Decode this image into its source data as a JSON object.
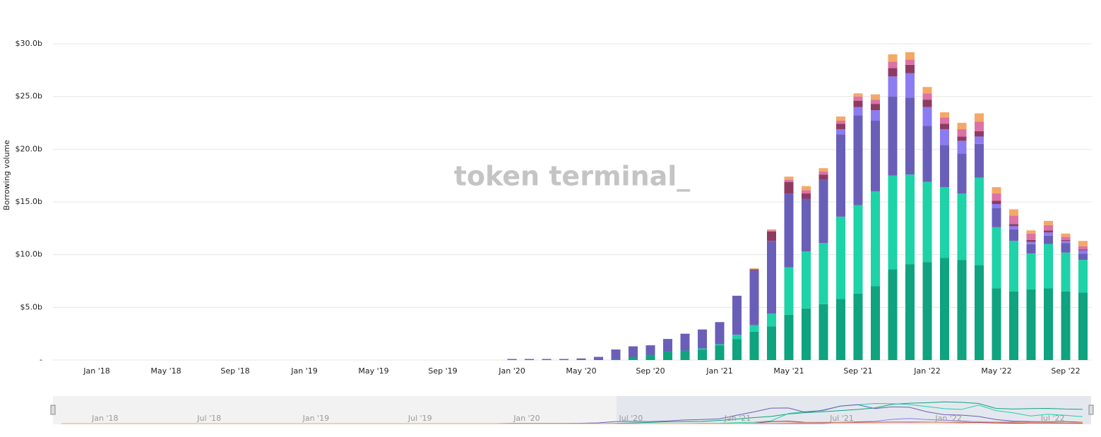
{
  "chart_data": {
    "type": "stacked_bar",
    "y_axis_label": "Borrowing volume",
    "watermark": "token terminal_",
    "categories": [
      null,
      null,
      "Jan '18",
      null,
      null,
      null,
      "May '18",
      null,
      null,
      null,
      "Sep '18",
      null,
      null,
      null,
      "Jan '19",
      null,
      null,
      null,
      "May '19",
      null,
      null,
      null,
      "Sep '19",
      null,
      null,
      null,
      "Jan '20",
      null,
      null,
      null,
      "May '20",
      null,
      null,
      null,
      "Sep '20",
      null,
      null,
      null,
      "Jan '21",
      null,
      null,
      null,
      "May '21",
      null,
      null,
      null,
      "Sep '21",
      null,
      null,
      null,
      "Jan '22",
      null,
      null,
      null,
      "May '22",
      null,
      null,
      null,
      "Sep '22",
      null
    ],
    "series": [
      {
        "color": "#0fa37f",
        "values": [
          0,
          0,
          0,
          0,
          0,
          0,
          0,
          0,
          0,
          0,
          0,
          0,
          0,
          0,
          0,
          0,
          0,
          0,
          0,
          0,
          0,
          0,
          0,
          0,
          0,
          0,
          0,
          0,
          0,
          0,
          0,
          0,
          0.1,
          0.3,
          0.5,
          0.8,
          0.9,
          1.0,
          1.4,
          2.0,
          2.7,
          3.2,
          4.3,
          4.9,
          5.3,
          5.8,
          6.3,
          7.0,
          8.6,
          9.1,
          9.3,
          9.7,
          9.5,
          9.0,
          6.8,
          6.5,
          6.7,
          6.8,
          6.5,
          6.4
        ]
      },
      {
        "color": "#1dd3a7",
        "values": [
          0,
          0,
          0,
          0,
          0,
          0,
          0,
          0,
          0,
          0,
          0,
          0,
          0,
          0,
          0,
          0,
          0,
          0,
          0,
          0,
          0,
          0,
          0,
          0,
          0,
          0,
          0,
          0,
          0,
          0,
          0,
          0,
          0,
          0,
          0,
          0,
          0,
          0.1,
          0.1,
          0.4,
          0.6,
          1.2,
          4.5,
          5.4,
          5.8,
          7.8,
          8.4,
          9.0,
          8.9,
          8.5,
          7.6,
          6.7,
          6.3,
          8.3,
          5.8,
          4.8,
          3.4,
          4.2,
          3.7,
          3.1
        ]
      },
      {
        "color": "#6a5fb8",
        "values": [
          0,
          0,
          0,
          0,
          0,
          0,
          0,
          0,
          0,
          0,
          0,
          0,
          0,
          0,
          0,
          0,
          0,
          0,
          0,
          0,
          0,
          0,
          0,
          0,
          0,
          0,
          0.1,
          0.1,
          0.1,
          0.1,
          0.15,
          0.3,
          0.9,
          1.0,
          0.9,
          1.2,
          1.6,
          1.8,
          2.1,
          3.7,
          5.2,
          6.9,
          7.0,
          5.0,
          6.0,
          7.8,
          8.5,
          6.7,
          7.5,
          7.3,
          5.3,
          4.0,
          3.8,
          3.2,
          1.8,
          1.1,
          0.9,
          0.8,
          0.9,
          0.6
        ]
      },
      {
        "color": "#8b7cf2",
        "values": [
          0,
          0,
          0,
          0,
          0,
          0,
          0,
          0,
          0,
          0,
          0,
          0,
          0,
          0,
          0,
          0,
          0,
          0,
          0,
          0,
          0,
          0,
          0,
          0,
          0,
          0,
          0,
          0,
          0,
          0,
          0,
          0,
          0,
          0,
          0,
          0,
          0,
          0,
          0,
          0,
          0,
          0,
          0,
          0,
          0,
          0.5,
          0.8,
          1.0,
          1.9,
          2.3,
          1.8,
          1.5,
          1.2,
          0.7,
          0.4,
          0.3,
          0.2,
          0.3,
          0.2,
          0.3
        ]
      },
      {
        "color": "#8e3b63",
        "values": [
          0,
          0,
          0,
          0,
          0,
          0,
          0,
          0,
          0,
          0,
          0,
          0,
          0,
          0,
          0,
          0,
          0,
          0,
          0,
          0,
          0,
          0,
          0,
          0,
          0,
          0,
          0,
          0,
          0,
          0,
          0,
          0,
          0,
          0,
          0,
          0,
          0,
          0,
          0,
          0,
          0.1,
          0.9,
          1.1,
          0.5,
          0.5,
          0.5,
          0.6,
          0.6,
          0.8,
          0.8,
          0.7,
          0.5,
          0.4,
          0.5,
          0.3,
          0.2,
          0.2,
          0.2,
          0.1,
          0.1
        ]
      },
      {
        "color": "#dc72a6",
        "values": [
          0,
          0,
          0,
          0,
          0,
          0,
          0,
          0,
          0,
          0,
          0,
          0,
          0,
          0,
          0,
          0,
          0,
          0,
          0,
          0,
          0,
          0,
          0,
          0,
          0,
          0,
          0,
          0,
          0,
          0,
          0,
          0,
          0,
          0,
          0,
          0,
          0,
          0,
          0,
          0,
          0,
          0.1,
          0.2,
          0.3,
          0.3,
          0.3,
          0.4,
          0.4,
          0.6,
          0.5,
          0.6,
          0.6,
          0.7,
          0.9,
          0.7,
          0.8,
          0.6,
          0.5,
          0.3,
          0.3
        ]
      },
      {
        "color": "#f4a868",
        "values": [
          0,
          0,
          0,
          0,
          0,
          0,
          0,
          0,
          0,
          0,
          0,
          0,
          0,
          0,
          0,
          0,
          0,
          0,
          0,
          0,
          0,
          0,
          0,
          0,
          0,
          0,
          0,
          0,
          0,
          0,
          0,
          0,
          0,
          0,
          0,
          0,
          0,
          0,
          0,
          0,
          0.1,
          0.1,
          0.3,
          0.4,
          0.3,
          0.4,
          0.3,
          0.5,
          0.7,
          0.7,
          0.6,
          0.5,
          0.6,
          0.8,
          0.6,
          0.6,
          0.3,
          0.4,
          0.3,
          0.5
        ]
      }
    ],
    "ylim": [
      0,
      30
    ],
    "yticks": [
      {
        "value": 0,
        "label": "-"
      },
      {
        "value": 5,
        "label": "$5.0b"
      },
      {
        "value": 10,
        "label": "$10.0b"
      },
      {
        "value": 15,
        "label": "$15.0b"
      },
      {
        "value": 20,
        "label": "$20.0b"
      },
      {
        "value": 25,
        "label": "$25.0b"
      },
      {
        "value": 30,
        "label": "$30.0b"
      }
    ],
    "grid": true,
    "navigator_labels": [
      "Jan '18",
      "Jul '18",
      "Jan '19",
      "Jul '19",
      "Jan '20",
      "Jul '20",
      "Jan '21",
      "Jul '21",
      "Jan '22",
      "Jul '22"
    ]
  }
}
